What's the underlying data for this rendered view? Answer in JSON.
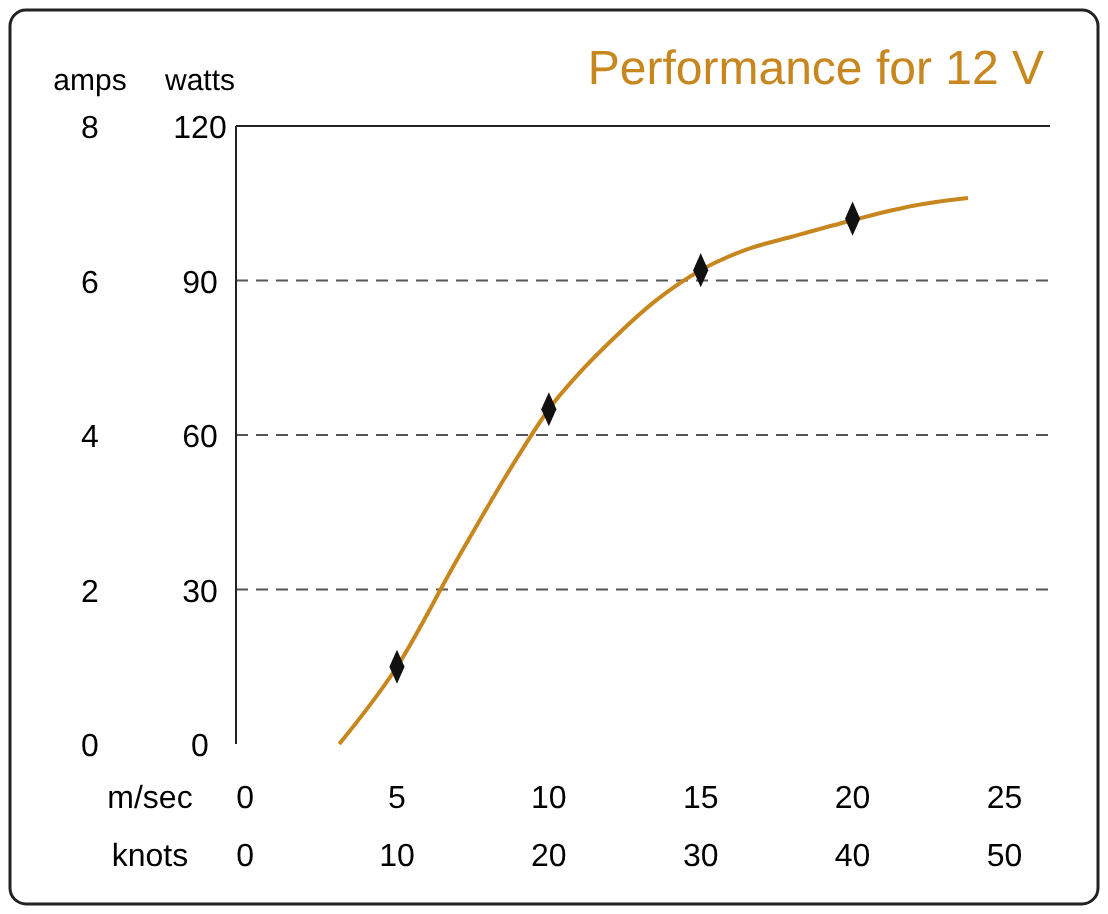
{
  "chart_data": {
    "type": "line",
    "title": "Performance for 12 V",
    "ylabel": "watts",
    "y2label": "amps",
    "xlabel": "m/sec",
    "x2label": "knots",
    "xlim": [
      -0.3,
      26.5
    ],
    "xticks": [
      0,
      5,
      10,
      15,
      20,
      25
    ],
    "x2lim": [
      -0.6,
      53
    ],
    "x2ticks": [
      0,
      10,
      20,
      30,
      40,
      50
    ],
    "ylim": [
      0,
      120
    ],
    "yticks": [
      0,
      30,
      60,
      90,
      120
    ],
    "y2lim": [
      0,
      8
    ],
    "y2ticks": [
      0,
      2,
      4,
      6,
      8
    ],
    "grid": "y",
    "series": [
      {
        "color": "#c8861e",
        "marker": "none",
        "x": [
          3.1,
          5,
          7,
          9,
          10,
          11,
          12,
          13.5,
          15,
          16.5,
          18,
          20,
          22,
          23.8
        ],
        "values": [
          0,
          15,
          36,
          56,
          65,
          72,
          78,
          86,
          92,
          96,
          98.5,
          101.7,
          104.5,
          106
        ]
      },
      {
        "type": "scatter",
        "color": "#111111",
        "marker": "diamond",
        "x": [
          5,
          10,
          15,
          20
        ],
        "values": [
          15,
          65,
          92,
          102
        ]
      }
    ]
  }
}
